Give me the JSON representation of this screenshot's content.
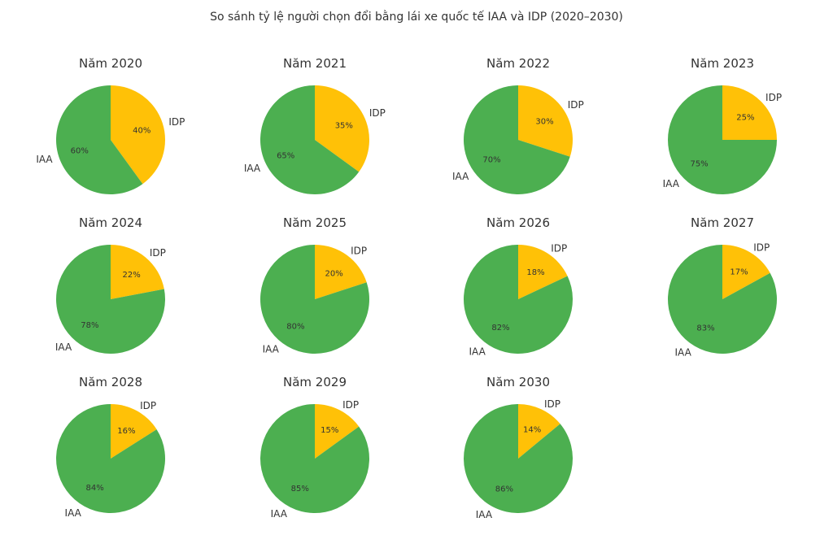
{
  "chart_data": {
    "type": "pie",
    "title": "So sánh tỷ lệ người chọn đổi bằng lái xe quốc tế IAA và IDP (2020–2030)",
    "labels": [
      "IDP",
      "IAA"
    ],
    "colors": {
      "IDP": "#FFC107",
      "IAA": "#4CAF50"
    },
    "start_angle_deg": 90,
    "direction": "clockwise",
    "pies": [
      {
        "title": "Năm 2020",
        "values": [
          40,
          60
        ]
      },
      {
        "title": "Năm 2021",
        "values": [
          35,
          65
        ]
      },
      {
        "title": "Năm 2022",
        "values": [
          30,
          70
        ]
      },
      {
        "title": "Năm 2023",
        "values": [
          25,
          75
        ]
      },
      {
        "title": "Năm 2024",
        "values": [
          22,
          78
        ]
      },
      {
        "title": "Năm 2025",
        "values": [
          20,
          80
        ]
      },
      {
        "title": "Năm 2026",
        "values": [
          18,
          82
        ]
      },
      {
        "title": "Năm 2027",
        "values": [
          17,
          83
        ]
      },
      {
        "title": "Năm 2028",
        "values": [
          16,
          84
        ]
      },
      {
        "title": "Năm 2029",
        "values": [
          15,
          85
        ]
      },
      {
        "title": "Năm 2030",
        "values": [
          14,
          86
        ]
      }
    ]
  }
}
